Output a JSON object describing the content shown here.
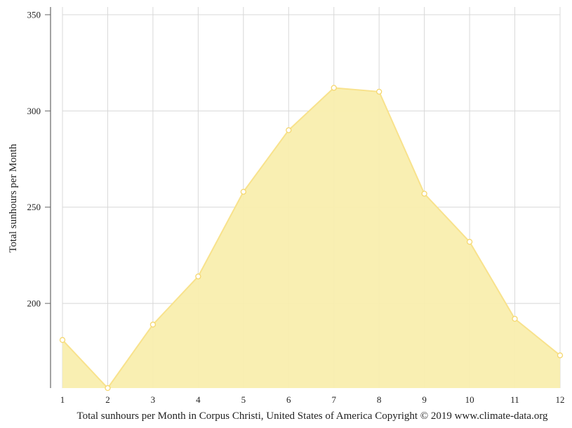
{
  "chart_data": {
    "type": "area",
    "x": [
      1,
      2,
      3,
      4,
      5,
      6,
      7,
      8,
      9,
      10,
      11,
      12
    ],
    "x_tick_labels": [
      "1",
      "2",
      "3",
      "4",
      "5",
      "6",
      "7",
      "8",
      "9",
      "10",
      "11",
      "12"
    ],
    "series": [
      {
        "values": [
          181,
          156,
          189,
          214,
          258,
          290,
          312,
          310,
          257,
          232,
          192,
          173
        ]
      }
    ],
    "ylabel": "Total sunhours per Month",
    "caption": "Total sunhours per Month in Corpus Christi, United States of America Copyright © 2019 www.climate-data.org",
    "ylim": [
      156,
      354
    ],
    "y_ticks": [
      200,
      250,
      300,
      350
    ],
    "y_tick_labels": [
      "200",
      "250",
      "300",
      "350"
    ],
    "grid": true,
    "colors": {
      "fill": "#f9eeae",
      "line": "#f8e28c",
      "marker_fill": "#ffffff",
      "marker_stroke": "#f5d76e",
      "grid": "#d8d8d8",
      "axis": "#666666"
    }
  }
}
